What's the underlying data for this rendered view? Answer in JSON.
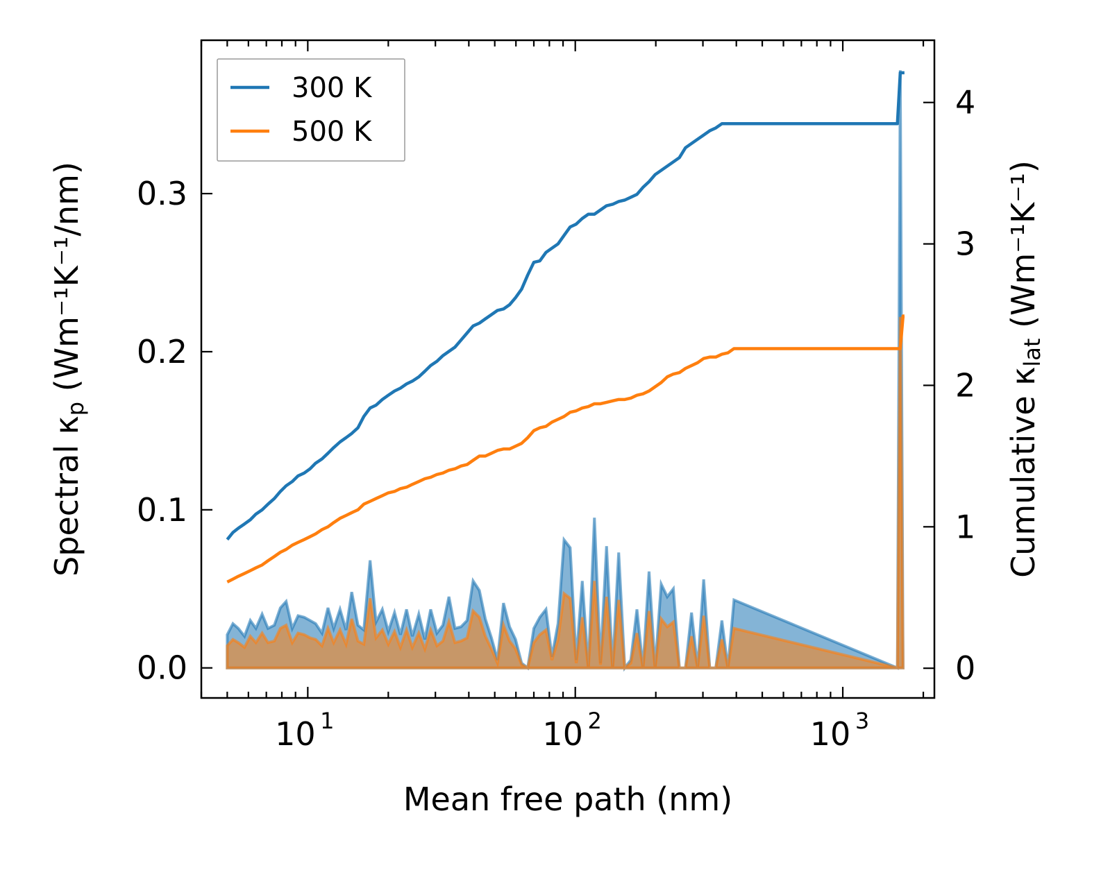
{
  "chart_data": {
    "type": "line",
    "title": "",
    "xlabel": "Mean free path (nm)",
    "xscale": "log",
    "xlim": [
      4.0,
      2200
    ],
    "x_ticks": [
      {
        "value": 10,
        "base": "10",
        "exp": "1"
      },
      {
        "value": 100,
        "base": "10",
        "exp": "2"
      },
      {
        "value": 1000,
        "base": "10",
        "exp": "3"
      }
    ],
    "y_left": {
      "label_main": "Spectral κ",
      "label_sub": "p",
      "label_units": " (Wm⁻¹K⁻¹/nm)",
      "ylim": [
        -0.019,
        0.397
      ],
      "ticks": [
        "0.0",
        "0.1",
        "0.2",
        "0.3"
      ],
      "tick_values": [
        0.0,
        0.1,
        0.2,
        0.3
      ]
    },
    "y_right": {
      "label_main": "Cumulative κ",
      "label_sub": "lat",
      "label_units": " (Wm⁻¹K⁻¹)",
      "ylim": [
        -0.21,
        4.44
      ],
      "ticks": [
        "0",
        "1",
        "2",
        "3",
        "4"
      ],
      "tick_values": [
        0,
        1,
        2,
        3,
        4
      ]
    },
    "legend": {
      "position": "top-left",
      "entries": [
        {
          "label": "300 K",
          "color": "#1f77b4"
        },
        {
          "label": "500 K",
          "color": "#ff7f0e"
        }
      ]
    },
    "x": [
      5.0,
      5.25,
      5.5,
      5.8,
      6.1,
      6.4,
      6.75,
      7.1,
      7.5,
      7.9,
      8.3,
      8.75,
      9.2,
      9.7,
      10.2,
      10.7,
      11.3,
      11.9,
      12.5,
      13.2,
      13.9,
      14.6,
      15.4,
      16.2,
      17.1,
      18.0,
      19.0,
      20.0,
      21.1,
      22.2,
      23.4,
      24.6,
      26.0,
      27.4,
      28.8,
      30.4,
      32.0,
      33.7,
      35.5,
      37.4,
      39.4,
      41.5,
      43.8,
      46.1,
      48.6,
      51.2,
      53.9,
      56.8,
      59.8,
      63.0,
      66.4,
      70.0,
      73.7,
      77.7,
      81.8,
      86.2,
      90.8,
      95.7,
      100.8,
      106.2,
      111.9,
      117.9,
      124.2,
      130.9,
      137.9,
      145.3,
      153.1,
      161.3,
      170.0,
      179.1,
      188.7,
      198.8,
      209.5,
      220.7,
      232.6,
      245.0,
      258.2,
      272.0,
      286.6,
      302.0,
      318.1,
      335.2,
      353.2,
      372.1,
      392.0,
      1600,
      1640,
      1680,
      1700
    ],
    "series": [
      {
        "name": "300 K",
        "color": "#1f77b4",
        "cumulative": [
          0.91,
          0.96,
          0.99,
          1.02,
          1.05,
          1.09,
          1.12,
          1.16,
          1.2,
          1.25,
          1.29,
          1.32,
          1.36,
          1.38,
          1.41,
          1.45,
          1.48,
          1.52,
          1.56,
          1.6,
          1.63,
          1.66,
          1.7,
          1.78,
          1.84,
          1.86,
          1.9,
          1.93,
          1.96,
          1.98,
          2.01,
          2.03,
          2.06,
          2.1,
          2.14,
          2.17,
          2.21,
          2.24,
          2.27,
          2.32,
          2.37,
          2.42,
          2.44,
          2.47,
          2.5,
          2.53,
          2.54,
          2.57,
          2.62,
          2.68,
          2.78,
          2.87,
          2.88,
          2.94,
          2.97,
          3.0,
          3.06,
          3.12,
          3.14,
          3.18,
          3.21,
          3.21,
          3.24,
          3.27,
          3.28,
          3.3,
          3.31,
          3.33,
          3.35,
          3.4,
          3.44,
          3.49,
          3.52,
          3.55,
          3.58,
          3.61,
          3.68,
          3.71,
          3.74,
          3.77,
          3.8,
          3.82,
          3.85,
          3.85,
          3.85,
          3.85,
          4.21,
          4.21,
          4.21
        ],
        "spectral": [
          0.021,
          0.028,
          0.025,
          0.02,
          0.03,
          0.025,
          0.034,
          0.025,
          0.027,
          0.038,
          0.042,
          0.025,
          0.033,
          0.032,
          0.03,
          0.028,
          0.022,
          0.038,
          0.025,
          0.037,
          0.024,
          0.048,
          0.027,
          0.024,
          0.068,
          0.029,
          0.037,
          0.023,
          0.035,
          0.021,
          0.037,
          0.02,
          0.034,
          0.018,
          0.037,
          0.022,
          0.027,
          0.045,
          0.025,
          0.026,
          0.03,
          0.055,
          0.049,
          0.031,
          0.019,
          0.005,
          0.041,
          0.026,
          0.018,
          0.003,
          0.0,
          0.025,
          0.032,
          0.037,
          0.007,
          0.028,
          0.081,
          0.076,
          0.005,
          0.055,
          0.0,
          0.095,
          0.003,
          0.077,
          0.0,
          0.073,
          0.0,
          0.005,
          0.037,
          0.0,
          0.061,
          0.0,
          0.053,
          0.045,
          0.05,
          0.0,
          0.0,
          0.035,
          0.0,
          0.056,
          0.0,
          0.0,
          0.03,
          0.0,
          0.043,
          0.0,
          0.378,
          0.0,
          0.0
        ],
        "spectral_upper": [
          0.021,
          0.028,
          0.025,
          0.02,
          0.03,
          0.025,
          0.034,
          0.025,
          0.027,
          0.038,
          0.042,
          0.025,
          0.033,
          0.032,
          0.03,
          0.028,
          0.022,
          0.038,
          0.025,
          0.037,
          0.024,
          0.048,
          0.027,
          0.024,
          0.068,
          0.029,
          0.037,
          0.023,
          0.035,
          0.021,
          0.037,
          0.02,
          0.034,
          0.018,
          0.037,
          0.022,
          0.027,
          0.045,
          0.025,
          0.026,
          0.03,
          0.055,
          0.049,
          0.031,
          0.019,
          0.005,
          0.041,
          0.026,
          0.018,
          0.003,
          0.0,
          0.025,
          0.032,
          0.037,
          0.007,
          0.028,
          0.081,
          0.076,
          0.005,
          0.055,
          0.0,
          0.095,
          0.003,
          0.077,
          0.0,
          0.073,
          0.0,
          0.005,
          0.037,
          0.0,
          0.061,
          0.0,
          0.053,
          0.045,
          0.05,
          0.0,
          0.0,
          0.035,
          0.0,
          0.056,
          0.0,
          0.0,
          0.03,
          0.0,
          0.043,
          0.0,
          0.378,
          0.0,
          0.0
        ]
      },
      {
        "name": "500 K",
        "color": "#ff7f0e",
        "cumulative": [
          0.61,
          0.63,
          0.65,
          0.67,
          0.69,
          0.71,
          0.73,
          0.76,
          0.79,
          0.82,
          0.84,
          0.87,
          0.89,
          0.91,
          0.93,
          0.95,
          0.98,
          1.0,
          1.03,
          1.06,
          1.08,
          1.1,
          1.12,
          1.16,
          1.18,
          1.2,
          1.22,
          1.24,
          1.25,
          1.27,
          1.28,
          1.3,
          1.32,
          1.34,
          1.35,
          1.37,
          1.38,
          1.4,
          1.41,
          1.43,
          1.44,
          1.47,
          1.5,
          1.5,
          1.52,
          1.54,
          1.55,
          1.55,
          1.57,
          1.59,
          1.63,
          1.68,
          1.7,
          1.71,
          1.74,
          1.76,
          1.78,
          1.81,
          1.82,
          1.84,
          1.85,
          1.87,
          1.87,
          1.88,
          1.89,
          1.9,
          1.9,
          1.91,
          1.93,
          1.94,
          1.96,
          1.99,
          2.02,
          2.06,
          2.08,
          2.09,
          2.12,
          2.14,
          2.16,
          2.19,
          2.2,
          2.2,
          2.22,
          2.23,
          2.26,
          2.26,
          2.26,
          2.49,
          2.49
        ],
        "spectral": [
          0.014,
          0.018,
          0.016,
          0.013,
          0.02,
          0.016,
          0.022,
          0.016,
          0.017,
          0.025,
          0.027,
          0.016,
          0.022,
          0.021,
          0.019,
          0.018,
          0.014,
          0.025,
          0.016,
          0.024,
          0.015,
          0.031,
          0.017,
          0.015,
          0.044,
          0.019,
          0.024,
          0.015,
          0.023,
          0.013,
          0.024,
          0.013,
          0.022,
          0.012,
          0.024,
          0.014,
          0.017,
          0.029,
          0.016,
          0.017,
          0.019,
          0.036,
          0.032,
          0.02,
          0.012,
          0.003,
          0.027,
          0.017,
          0.012,
          0.002,
          0.0,
          0.016,
          0.021,
          0.024,
          0.005,
          0.018,
          0.047,
          0.044,
          0.003,
          0.032,
          0.0,
          0.055,
          0.002,
          0.045,
          0.0,
          0.043,
          0.0,
          0.003,
          0.022,
          0.0,
          0.036,
          0.0,
          0.031,
          0.026,
          0.029,
          0.0,
          0.0,
          0.02,
          0.0,
          0.033,
          0.0,
          0.0,
          0.018,
          0.0,
          0.025,
          0.0,
          0.222,
          0.0,
          0.0
        ]
      }
    ]
  }
}
